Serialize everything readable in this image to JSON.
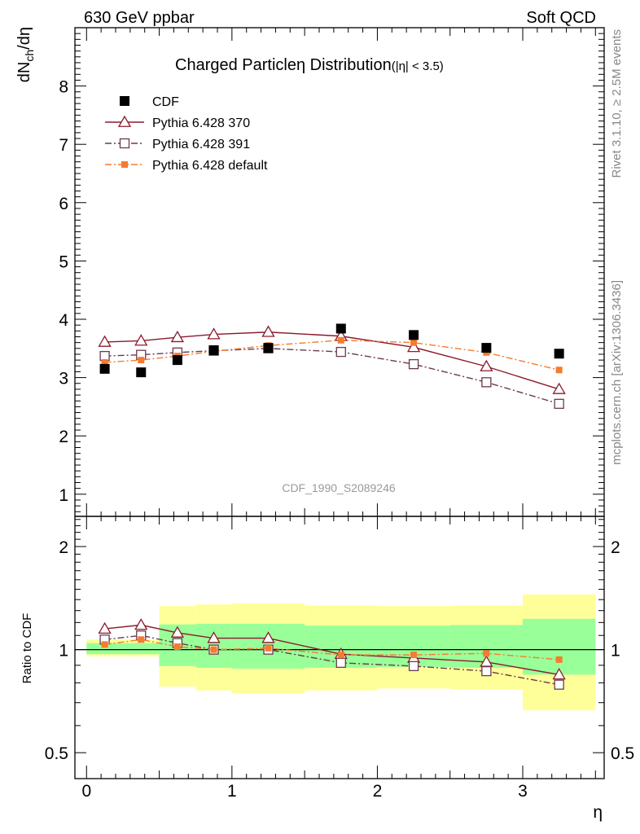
{
  "header": {
    "left": "630 GeV ppbar",
    "right": "Soft QCD"
  },
  "side_text": {
    "top": "Rivet 3.1.10, ≥ 2.5M events",
    "bottom": "mcplots.cern.ch [arXiv:1306.3436]"
  },
  "analysis_id": "CDF_1990_S2089246",
  "chart_data": [
    {
      "type": "scatter",
      "panel": "main",
      "title": "Charged Particle",
      "title_eta": "η",
      "title_dist": " Distribution",
      "title_sub": "(|η| < 3.5)",
      "ylabel": "dN",
      "ylabel_sub": "ch",
      "ylabel_tail": "/dη",
      "xlabel": "η",
      "xlim": [
        -0.08,
        3.56
      ],
      "ylim": [
        0.62,
        9.0
      ],
      "yticks": [
        1,
        2,
        3,
        4,
        5,
        6,
        7,
        8
      ],
      "ytick_labels": [
        "1",
        "2",
        "3",
        "4",
        "5",
        "6",
        "7",
        "8"
      ],
      "legend_position": "top-left",
      "x": [
        0.125,
        0.375,
        0.625,
        0.875,
        1.25,
        1.75,
        2.25,
        2.75,
        3.25
      ],
      "series": [
        {
          "name": "CDF",
          "role": "data",
          "color": "#000000",
          "marker": "filled-square",
          "y": [
            3.15,
            3.09,
            3.3,
            3.47,
            3.51,
            3.84,
            3.73,
            3.51,
            3.41
          ]
        },
        {
          "name": "Pythia 6.428 370",
          "role": "mc",
          "color": "#8b1a2b",
          "marker": "open-triangle",
          "line": "solid",
          "y": [
            3.61,
            3.63,
            3.69,
            3.74,
            3.78,
            3.71,
            3.52,
            3.19,
            2.8
          ]
        },
        {
          "name": "Pythia 6.428 391",
          "role": "mc",
          "color": "#6b3a4c",
          "marker": "open-square",
          "line": "dashdot",
          "y": [
            3.37,
            3.39,
            3.43,
            3.46,
            3.5,
            3.44,
            3.23,
            2.92,
            2.55
          ]
        },
        {
          "name": "Pythia 6.428 default",
          "role": "mc",
          "color": "#f47c30",
          "marker": "filled-small-square",
          "line": "dashdot",
          "y": [
            3.26,
            3.3,
            3.37,
            3.45,
            3.55,
            3.64,
            3.6,
            3.43,
            3.13
          ]
        }
      ]
    },
    {
      "type": "scatter",
      "panel": "ratio",
      "ylabel": "Ratio to CDF",
      "xlabel": "η",
      "log_y": true,
      "xlim": [
        -0.08,
        3.56
      ],
      "ylim": [
        0.42,
        2.45
      ],
      "yticks": [
        0.5,
        1,
        2
      ],
      "ytick_labels": [
        "0.5",
        "1",
        "2"
      ],
      "xticks": [
        0,
        1,
        2,
        3
      ],
      "xtick_labels": [
        "0",
        "1",
        "2",
        "3"
      ],
      "bands": {
        "edges": [
          0,
          0.5,
          0.75,
          1.0,
          1.5,
          2.0,
          2.5,
          3.0,
          3.5
        ],
        "yellow_lo": [
          0.955,
          0.78,
          0.76,
          0.745,
          0.76,
          0.77,
          0.765,
          0.665
        ],
        "yellow_hi": [
          1.07,
          1.34,
          1.355,
          1.365,
          1.345,
          1.34,
          1.345,
          1.45
        ],
        "green_lo": [
          0.97,
          0.895,
          0.885,
          0.88,
          0.885,
          0.89,
          0.885,
          0.845
        ],
        "green_hi": [
          1.045,
          1.185,
          1.19,
          1.19,
          1.175,
          1.175,
          1.18,
          1.23
        ],
        "yellow_color": "#ffff99",
        "green_color": "#99ff99"
      },
      "x": [
        0.125,
        0.375,
        0.625,
        0.875,
        1.25,
        1.75,
        2.25,
        2.75,
        3.25
      ],
      "series": [
        {
          "name": "Pythia 6.428 370",
          "color": "#8b1a2b",
          "marker": "open-triangle",
          "line": "solid",
          "y": [
            1.15,
            1.18,
            1.12,
            1.08,
            1.08,
            0.97,
            0.945,
            0.92,
            0.845
          ]
        },
        {
          "name": "Pythia 6.428 391",
          "color": "#6b3a4c",
          "marker": "open-square",
          "line": "dashdot",
          "y": [
            1.07,
            1.1,
            1.045,
            1.0,
            1.0,
            0.915,
            0.895,
            0.865,
            0.79
          ]
        },
        {
          "name": "Pythia 6.428 default",
          "color": "#f47c30",
          "marker": "filled-small-square",
          "line": "dashdot",
          "y": [
            1.035,
            1.07,
            1.02,
            1.0,
            1.01,
            0.965,
            0.965,
            0.975,
            0.935
          ]
        }
      ]
    }
  ]
}
